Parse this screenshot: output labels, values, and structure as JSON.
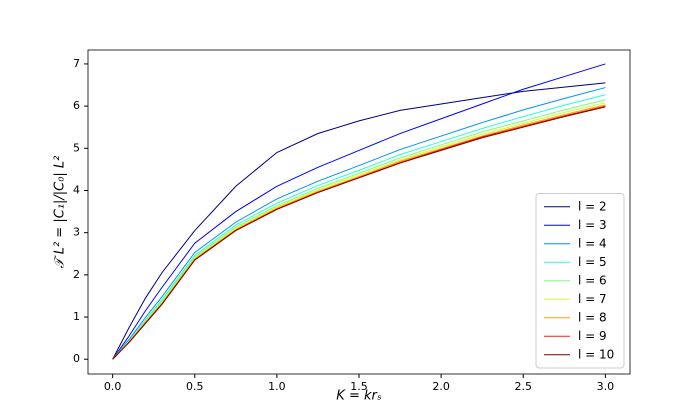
{
  "chart_data": {
    "type": "line",
    "xlabel": "K = krₛ",
    "ylabel": "𝒯 L² = |C₁|/|C₀| L²",
    "x": [
      0,
      0.1,
      0.2,
      0.3,
      0.5,
      0.75,
      1,
      1.25,
      1.5,
      1.75,
      2,
      2.25,
      2.5,
      2.75,
      3
    ],
    "xlim": [
      -0.15,
      3.15
    ],
    "ylim": [
      -0.35,
      7.33
    ],
    "xticks": [
      {
        "value": 0,
        "label": "0.0"
      },
      0.5,
      {
        "value": 1,
        "label": "1.0"
      },
      1.5,
      {
        "value": 2,
        "label": "2.0"
      },
      2.5,
      {
        "value": 3,
        "label": "3.0"
      }
    ],
    "yticks": [
      0,
      1,
      2,
      3,
      4,
      5,
      6,
      7
    ],
    "legend": "lower right",
    "series": [
      {
        "name": "l = 2",
        "color": "#00007f",
        "values": [
          0,
          0.75,
          1.45,
          2.05,
          3.05,
          4.1,
          4.9,
          5.35,
          5.65,
          5.9,
          6.05,
          6.2,
          6.35,
          6.45,
          6.55
        ]
      },
      {
        "name": "l = 3",
        "color": "#0000ff",
        "values": [
          0,
          0.55,
          1.15,
          1.7,
          2.75,
          3.5,
          4.1,
          4.55,
          4.95,
          5.35,
          5.7,
          6.05,
          6.4,
          6.7,
          7.0
        ]
      },
      {
        "name": "l = 4",
        "color": "#0090ff",
        "values": [
          0,
          0.47,
          0.99,
          1.48,
          2.53,
          3.25,
          3.8,
          4.22,
          4.59,
          4.97,
          5.29,
          5.61,
          5.91,
          6.18,
          6.44
        ]
      },
      {
        "name": "l = 5",
        "color": "#29ffce",
        "values": [
          0,
          0.44,
          0.93,
          1.41,
          2.46,
          3.18,
          3.7,
          4.12,
          4.48,
          4.85,
          5.16,
          5.47,
          5.75,
          6.02,
          6.27
        ]
      },
      {
        "name": "l = 6",
        "color": "#7dff7a",
        "values": [
          0,
          0.43,
          0.9,
          1.37,
          2.42,
          3.13,
          3.64,
          4.05,
          4.41,
          4.77,
          5.08,
          5.39,
          5.65,
          5.91,
          6.15
        ]
      },
      {
        "name": "l = 7",
        "color": "#ceff29",
        "values": [
          0,
          0.42,
          0.88,
          1.34,
          2.39,
          3.1,
          3.61,
          4.01,
          4.37,
          4.72,
          5.03,
          5.33,
          5.59,
          5.85,
          6.08
        ]
      },
      {
        "name": "l = 8",
        "color": "#ff9d00",
        "values": [
          0,
          0.41,
          0.87,
          1.32,
          2.37,
          3.07,
          3.58,
          3.98,
          4.33,
          4.69,
          4.99,
          5.29,
          5.55,
          5.8,
          6.03
        ]
      },
      {
        "name": "l = 9",
        "color": "#ff1e00",
        "values": [
          0,
          0.4,
          0.86,
          1.31,
          2.36,
          3.06,
          3.56,
          3.96,
          4.31,
          4.66,
          4.97,
          5.27,
          5.52,
          5.77,
          6.0
        ]
      },
      {
        "name": "l = 10",
        "color": "#7f0000",
        "values": [
          0,
          0.4,
          0.85,
          1.3,
          2.35,
          3.05,
          3.55,
          3.95,
          4.3,
          4.65,
          4.95,
          5.25,
          5.5,
          5.75,
          5.98
        ]
      }
    ]
  }
}
